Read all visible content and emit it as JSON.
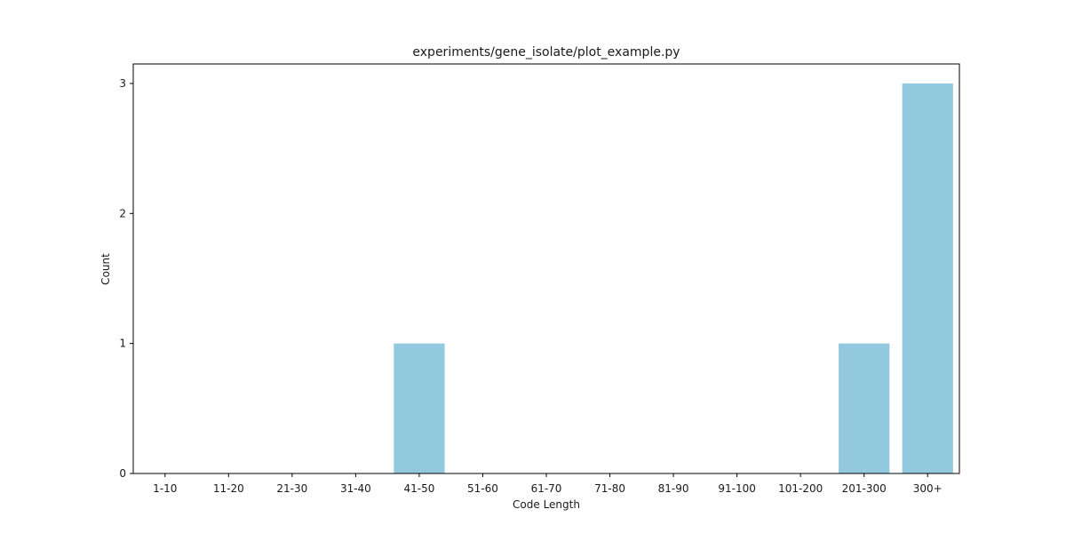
{
  "chart_data": {
    "type": "bar",
    "title": "experiments/gene_isolate/plot_example.py",
    "xlabel": "Code Length",
    "ylabel": "Count",
    "categories": [
      "1-10",
      "11-20",
      "21-30",
      "31-40",
      "41-50",
      "51-60",
      "61-70",
      "71-80",
      "81-90",
      "91-100",
      "101-200",
      "201-300",
      "300+"
    ],
    "values": [
      0,
      0,
      0,
      0,
      1,
      0,
      0,
      0,
      0,
      0,
      0,
      1,
      3
    ],
    "ylim": [
      0,
      3.15
    ],
    "yticks": [
      0,
      1,
      2,
      3
    ],
    "grid": false,
    "bar_color": "#92c9df"
  }
}
